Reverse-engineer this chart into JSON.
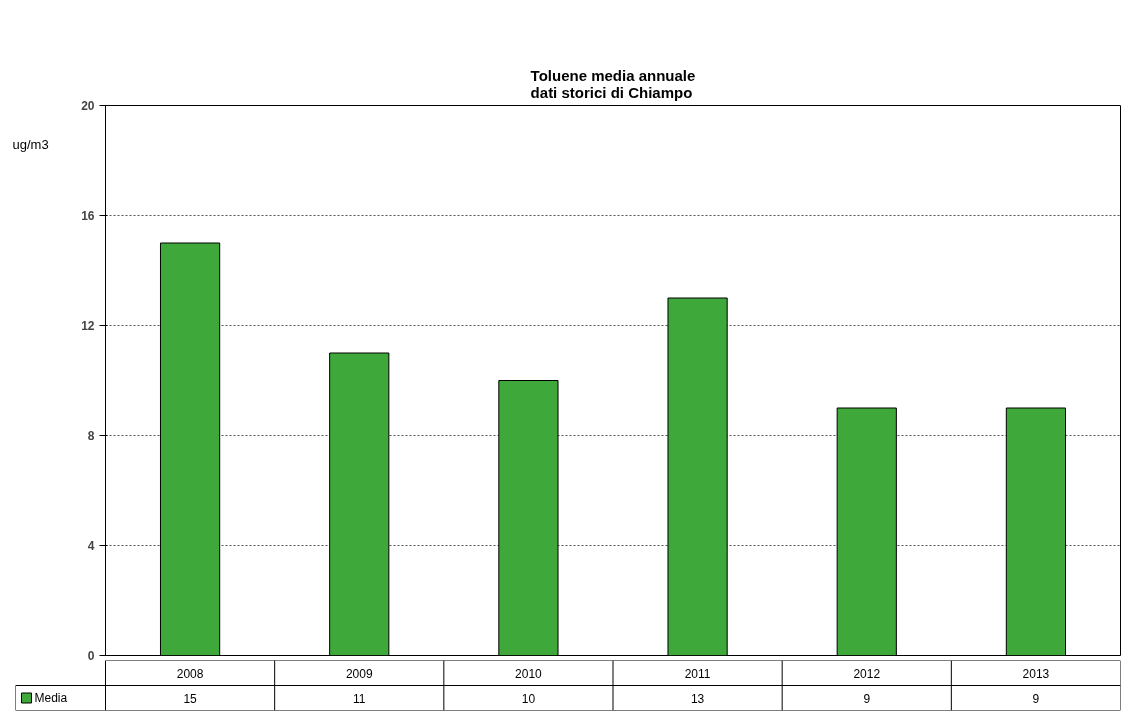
{
  "chart_data": {
    "type": "bar",
    "title": "Toluene media annuale",
    "subtitle": "dati storici di Chiampo",
    "ylabel": "ug/m3",
    "categories": [
      "2008",
      "2009",
      "2010",
      "2011",
      "2012",
      "2013"
    ],
    "series": [
      {
        "name": "Media",
        "color": "#3ea83a",
        "values": [
          15,
          11,
          10,
          13,
          9,
          9
        ]
      }
    ],
    "ylim": [
      0,
      20
    ],
    "yticks": [
      0,
      4,
      8,
      12,
      16,
      20
    ],
    "grid": "y",
    "legend": "bottom left",
    "data_labels": true
  }
}
